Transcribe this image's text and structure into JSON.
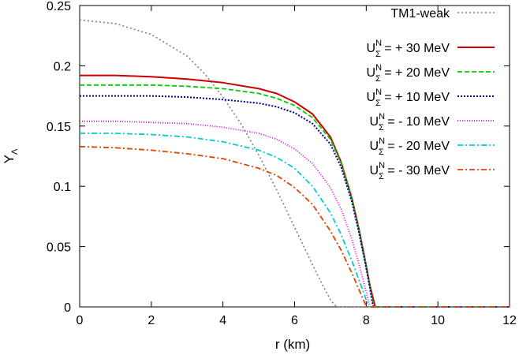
{
  "chart_data": {
    "type": "line",
    "title": "",
    "xlabel": "r (km)",
    "ylabel": "Y",
    "ylabel_sub": "Λ",
    "xlim": [
      0,
      12
    ],
    "ylim": [
      0,
      0.25
    ],
    "xticks": [
      0,
      2,
      4,
      6,
      8,
      10,
      12
    ],
    "xtick_labels": [
      "0",
      "2",
      "4",
      "6",
      "8",
      "10",
      "12"
    ],
    "yticks": [
      0,
      0.05,
      0.1,
      0.15,
      0.2,
      0.25
    ],
    "ytick_labels": [
      "0",
      "0.05",
      "0.1",
      "0.15",
      "0.2",
      "0.25"
    ],
    "grid": false,
    "legend_position": "top-right",
    "series": [
      {
        "name": "TM1-weak",
        "legend_parts": [
          "TM1-weak"
        ],
        "color": "#808080",
        "dash": "2,3",
        "width": 1.6,
        "x": [
          0,
          1,
          2,
          3,
          3.5,
          4,
          4.5,
          5,
          5.5,
          6,
          6.5,
          6.8,
          7.0,
          7.1,
          7.2,
          12
        ],
        "y": [
          0.238,
          0.235,
          0.226,
          0.208,
          0.193,
          0.174,
          0.152,
          0.126,
          0.097,
          0.066,
          0.035,
          0.017,
          0.006,
          0.002,
          0,
          0
        ]
      },
      {
        "name": "U^N_Σ = + 30 MeV",
        "legend_parts": [
          "U",
          "N",
          "Σ",
          " = + 30 MeV"
        ],
        "color": "#cc0000",
        "dash": "",
        "width": 2.0,
        "x": [
          0,
          1,
          2,
          3,
          4,
          5,
          5.5,
          6,
          6.5,
          7,
          7.3,
          7.6,
          7.8,
          8.0,
          8.1,
          8.2,
          8.25,
          12
        ],
        "y": [
          0.192,
          0.192,
          0.191,
          0.189,
          0.186,
          0.181,
          0.177,
          0.17,
          0.16,
          0.141,
          0.12,
          0.09,
          0.064,
          0.034,
          0.018,
          0.006,
          0,
          0
        ]
      },
      {
        "name": "U^N_Σ = + 20 MeV",
        "legend_parts": [
          "U",
          "N",
          "Σ",
          " = + 20 MeV"
        ],
        "color": "#00cc00",
        "dash": "6,3",
        "width": 1.8,
        "x": [
          0,
          1,
          2,
          3,
          4,
          5,
          5.5,
          6,
          6.5,
          7,
          7.3,
          7.6,
          7.8,
          8.0,
          8.1,
          8.18,
          8.22,
          12
        ],
        "y": [
          0.184,
          0.184,
          0.184,
          0.183,
          0.181,
          0.177,
          0.173,
          0.167,
          0.157,
          0.139,
          0.119,
          0.089,
          0.063,
          0.033,
          0.017,
          0.005,
          0,
          0
        ]
      },
      {
        "name": "U^N_Σ = + 10 MeV",
        "legend_parts": [
          "U",
          "N",
          "Σ",
          " = + 10 MeV"
        ],
        "color": "#000099",
        "dash": "2,2",
        "width": 2.0,
        "x": [
          0,
          1,
          2,
          3,
          4,
          5,
          5.5,
          6,
          6.5,
          7,
          7.3,
          7.6,
          7.8,
          8.0,
          8.1,
          8.16,
          8.2,
          12
        ],
        "y": [
          0.175,
          0.175,
          0.175,
          0.174,
          0.172,
          0.169,
          0.166,
          0.161,
          0.152,
          0.135,
          0.116,
          0.087,
          0.061,
          0.032,
          0.016,
          0.005,
          0,
          0
        ]
      },
      {
        "name": "U^N_Σ = - 10 MeV",
        "legend_parts": [
          "U",
          "N",
          "Σ",
          " = - 10 MeV"
        ],
        "color": "#ee00ee",
        "dash": "1,2",
        "width": 1.8,
        "x": [
          0,
          1,
          2,
          3,
          4,
          5,
          5.5,
          6,
          6.5,
          7,
          7.3,
          7.6,
          7.8,
          7.95,
          8.05,
          8.1,
          12
        ],
        "y": [
          0.154,
          0.154,
          0.153,
          0.152,
          0.149,
          0.144,
          0.139,
          0.131,
          0.119,
          0.099,
          0.081,
          0.056,
          0.035,
          0.018,
          0.006,
          0,
          0
        ]
      },
      {
        "name": "U^N_Σ = - 20 MeV",
        "legend_parts": [
          "U",
          "N",
          "Σ",
          " = - 20 MeV"
        ],
        "color": "#00cccc",
        "dash": "7,3,2,3",
        "width": 1.8,
        "x": [
          0,
          1,
          2,
          3,
          4,
          5,
          5.5,
          6,
          6.5,
          7,
          7.3,
          7.6,
          7.8,
          7.95,
          8.03,
          8.05,
          12
        ],
        "y": [
          0.144,
          0.144,
          0.143,
          0.141,
          0.137,
          0.13,
          0.124,
          0.115,
          0.1,
          0.078,
          0.06,
          0.038,
          0.022,
          0.01,
          0.003,
          0,
          0
        ]
      },
      {
        "name": "U^N_Σ = - 30 MeV",
        "legend_parts": [
          "U",
          "N",
          "Σ",
          " = - 30 MeV"
        ],
        "color": "#dd4400",
        "dash": "7,3,2,3",
        "width": 1.8,
        "x": [
          0,
          1,
          2,
          3,
          4,
          5,
          5.5,
          6,
          6.5,
          7,
          7.3,
          7.6,
          7.8,
          7.95,
          8.0,
          12
        ],
        "y": [
          0.133,
          0.132,
          0.13,
          0.127,
          0.123,
          0.115,
          0.109,
          0.099,
          0.085,
          0.063,
          0.047,
          0.028,
          0.014,
          0.004,
          0,
          0
        ]
      }
    ]
  }
}
